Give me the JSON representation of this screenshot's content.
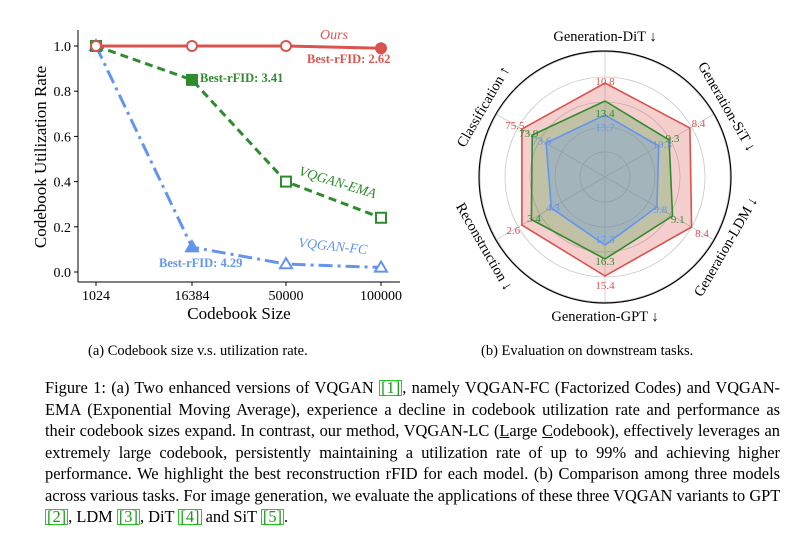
{
  "chart_data": [
    {
      "type": "line",
      "xlabel": "Codebook Size",
      "ylabel": "Codebook Utilization Rate",
      "categories": [
        "1024",
        "16384",
        "50000",
        "100000"
      ],
      "ylim": [
        0,
        1.05
      ],
      "yticks": [
        "0.0",
        "0.2",
        "0.4",
        "0.6",
        "0.8",
        "1.0"
      ],
      "series": [
        {
          "name": "Ours",
          "color": "#d9534f",
          "values": [
            1.0,
            1.0,
            1.0,
            0.99
          ],
          "annotation": "Best-rFID: 2.62"
        },
        {
          "name": "VQGAN-EMA",
          "color": "#2e8b2e",
          "values": [
            1.0,
            0.85,
            0.4,
            0.24
          ],
          "annotation": "Best-rFID: 3.41"
        },
        {
          "name": "VQGAN-FC",
          "color": "#6495ed",
          "values": [
            1.0,
            0.11,
            0.035,
            0.02
          ],
          "annotation": "Best-rFID: 4.29"
        }
      ]
    },
    {
      "type": "radar",
      "axes": [
        "Generation-DiT ↓",
        "Generation-SiT ↓",
        "Generation-LDM ↓",
        "Generation-GPT ↓",
        "Reconstruction ↓",
        "Classification ↑"
      ],
      "series": [
        {
          "name": "Ours",
          "color": "#d9534f",
          "values": [
            "10.8",
            "8.4",
            "8.4",
            "15.4",
            "2.6",
            "75.5"
          ]
        },
        {
          "name": "VQGAN-EMA",
          "color": "#2e8b2e",
          "values": [
            "13.4",
            "9.3",
            "9.1",
            "16.3",
            "3.4",
            "73.9"
          ]
        },
        {
          "name": "VQGAN-FC",
          "color": "#6495ed",
          "values": [
            "13.7",
            "10.3",
            "9.8",
            "17.3",
            "4.3",
            "73.6"
          ]
        }
      ]
    }
  ],
  "subcaptions": {
    "a": "(a) Codebook size v.s. utilization rate.",
    "b": "(b) Evaluation on downstream tasks."
  },
  "caption": {
    "p1": "Figure 1: (a) Two enhanced versions of VQGAN ",
    "r1": "[1]",
    "p2": ", namely VQGAN-FC (Factorized Codes) and VQGAN-EMA (Exponential Moving Average), experience a decline in codebook utilization rate and performance as their codebook sizes expand. In contrast, our method, VQGAN-LC (",
    "l_char": "L",
    "p3": "arge ",
    "c_char": "C",
    "p4": "odebook), effectively leverages an extremely large codebook, persistently maintaining a utilization rate of up to 99% and achieving higher performance. We highlight the best reconstruction rFID for each model. (b) Comparison among three models across various tasks. For image generation, we evaluate the applications of these three VQGAN variants to GPT ",
    "r2": "[2]",
    "p5": ", LDM ",
    "r3": "[3]",
    "p6": ", DiT ",
    "r4": "[4]",
    "p7": " and SiT ",
    "r5": "[5]",
    "p8": "."
  }
}
